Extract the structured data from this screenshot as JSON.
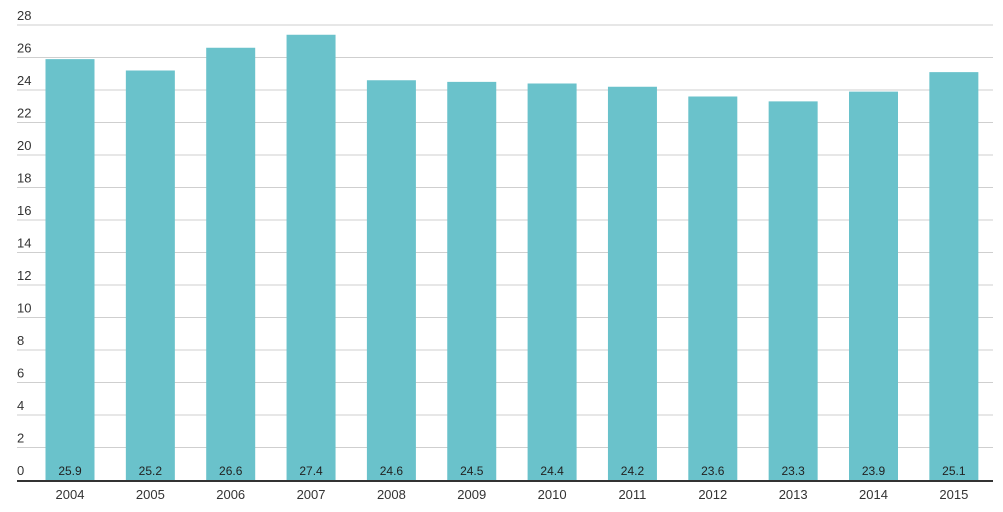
{
  "chart_data": {
    "type": "bar",
    "categories": [
      "2004",
      "2005",
      "2006",
      "2007",
      "2008",
      "2009",
      "2010",
      "2011",
      "2012",
      "2013",
      "2014",
      "2015"
    ],
    "values": [
      25.9,
      25.2,
      26.6,
      27.4,
      24.6,
      24.5,
      24.4,
      24.2,
      23.6,
      23.3,
      23.9,
      25.1
    ],
    "data_labels": [
      "25.9",
      "25.2",
      "26.6",
      "27.4",
      "24.6",
      "24.5",
      "24.4",
      "24.2",
      "23.6",
      "23.3",
      "23.9",
      "25.1"
    ],
    "title": "",
    "xlabel": "",
    "ylabel": "",
    "ylim": [
      0,
      28
    ],
    "yticks": [
      "0",
      "2",
      "4",
      "6",
      "8",
      "10",
      "12",
      "14",
      "16",
      "18",
      "20",
      "22",
      "24",
      "26",
      "28"
    ],
    "grid": true,
    "bar_color": "#6ac2cb"
  }
}
